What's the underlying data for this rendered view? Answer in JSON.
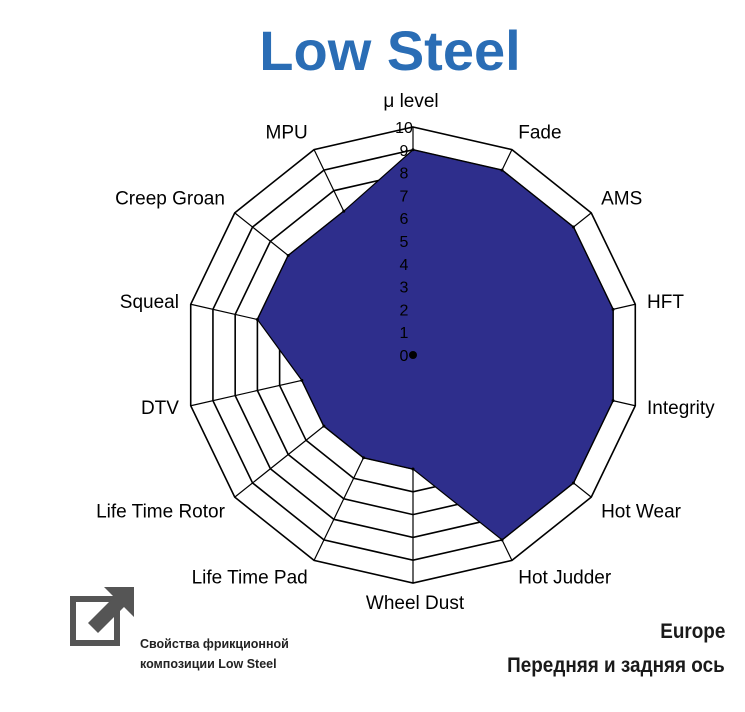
{
  "title": "Low Steel",
  "note": {
    "line1": "Свойства фрикционной",
    "line2": "композиции Low Steel"
  },
  "region": {
    "line1": "Europe",
    "line2": "Передняя и задняя ось"
  },
  "colors": {
    "title": "#2a6db5",
    "fill": "#2e2e8c"
  },
  "icons": {
    "note": "external-link-icon"
  },
  "chart_data": {
    "type": "radar",
    "title": "Low Steel",
    "axes": [
      "μ level",
      "Fade",
      "AMS",
      "HFT",
      "Integrity",
      "Hot Wear",
      "Hot Judder",
      "Wheel Dust",
      "Life Time Pad",
      "Life Time Rotor",
      "DTV",
      "Squeal",
      "Creep Groan",
      "MPU"
    ],
    "values": [
      9,
      9,
      9,
      9,
      9,
      9,
      9,
      5,
      5,
      5,
      5,
      7,
      7,
      7
    ],
    "scale": [
      "0",
      "1",
      "2",
      "3",
      "4",
      "5",
      "6",
      "7",
      "8",
      "9",
      "10"
    ],
    "range": [
      0,
      10
    ],
    "grid": true,
    "legend": "none"
  }
}
